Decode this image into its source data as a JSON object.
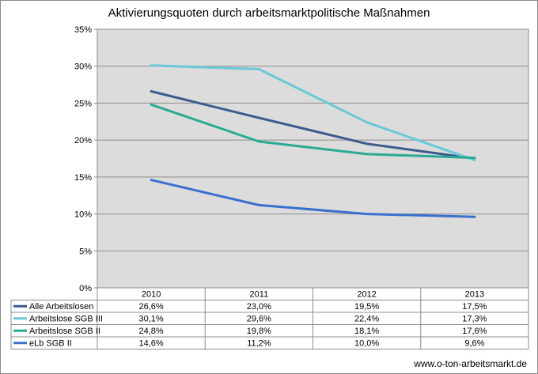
{
  "chart_data": {
    "type": "line",
    "title": "Aktivierungsquoten durch arbeitsmarktpolitische Maßnahmen",
    "categories": [
      "2010",
      "2011",
      "2012",
      "2013"
    ],
    "ylim": [
      0,
      35
    ],
    "y_ticks": [
      "0%",
      "5%",
      "10%",
      "15%",
      "20%",
      "25%",
      "30%",
      "35%"
    ],
    "grid": true,
    "legend": "data-table-below",
    "series": [
      {
        "name": "Alle Arbeitslosen",
        "color": "#3c5a8c",
        "values": [
          26.6,
          23.0,
          19.5,
          17.5
        ],
        "labels": [
          "26,6%",
          "23,0%",
          "19,5%",
          "17,5%"
        ]
      },
      {
        "name": "Arbeitslose SGB III",
        "color": "#6cc8d9",
        "values": [
          30.1,
          29.6,
          22.4,
          17.3
        ],
        "labels": [
          "30,1%",
          "29,6%",
          "22,4%",
          "17,3%"
        ]
      },
      {
        "name": "Arbeitslose SGB II",
        "color": "#2aaa94",
        "values": [
          24.8,
          19.8,
          18.1,
          17.6
        ],
        "labels": [
          "24,8%",
          "19,8%",
          "18,1%",
          "17,6%"
        ]
      },
      {
        "name": "eLb SGB II",
        "color": "#3a6fcf",
        "values": [
          14.6,
          11.2,
          10.0,
          9.6
        ],
        "labels": [
          "14,6%",
          "11,2%",
          "10,0%",
          "9,6%"
        ]
      }
    ]
  },
  "source": "www.o-ton-arbeitsmarkt.de"
}
